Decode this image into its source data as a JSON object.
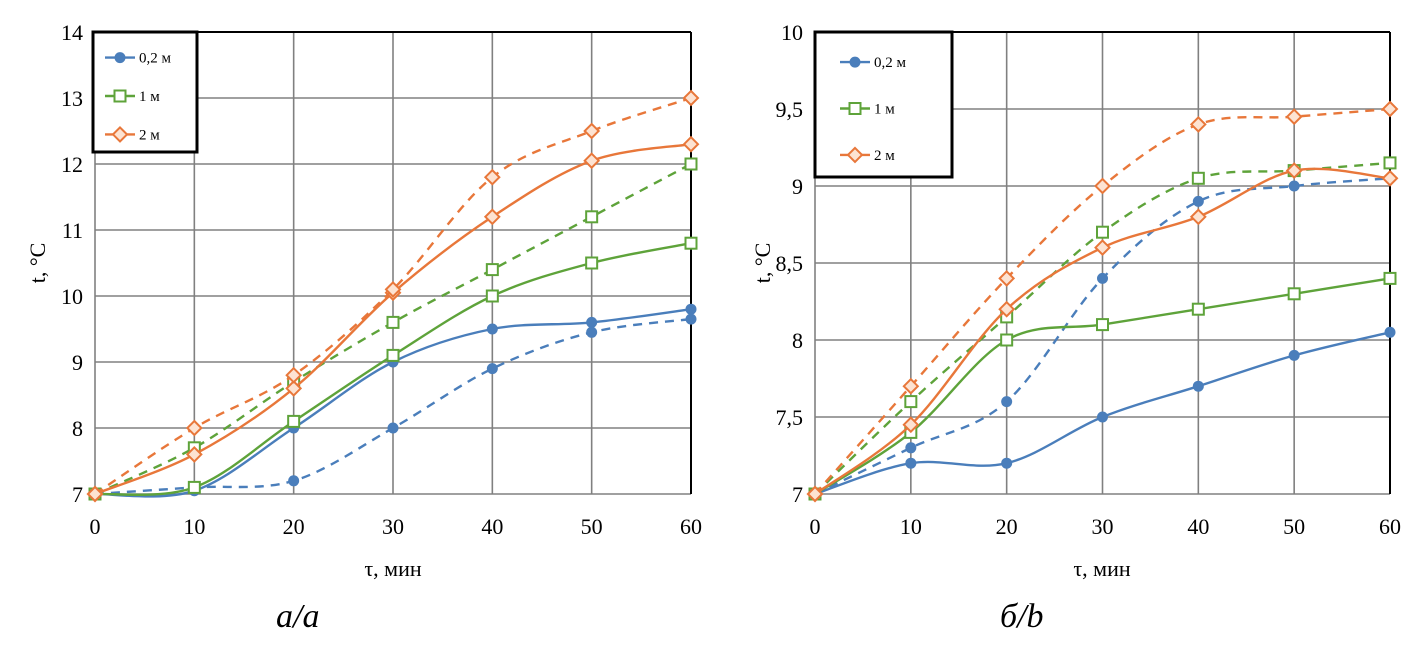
{
  "chart_data": [
    {
      "type": "line",
      "caption": "а/а",
      "xlabel": "τ, мин",
      "ylabel": "t, °C",
      "x": [
        0,
        10,
        20,
        30,
        40,
        50,
        60
      ],
      "xlim": [
        0,
        60
      ],
      "ylim": [
        7,
        14
      ],
      "xticks": [
        "0",
        "10",
        "20",
        "30",
        "40",
        "50",
        "60"
      ],
      "yticks": [
        "7",
        "8",
        "9",
        "10",
        "11",
        "12",
        "13",
        "14"
      ],
      "ytick_values": [
        7,
        8,
        9,
        10,
        11,
        12,
        13,
        14
      ],
      "grid": true,
      "legend_position": "top-left",
      "legend": [
        "0,2 м",
        "1 м",
        "2 м"
      ],
      "series": [
        {
          "name": "0,2 м",
          "style": "solid",
          "marker": "circle",
          "color": "#4a7ebb",
          "values": [
            7,
            7.05,
            8,
            9,
            9.5,
            9.6,
            9.8
          ]
        },
        {
          "name": "0,2 м",
          "style": "dashed",
          "marker": "circle",
          "color": "#4a7ebb",
          "values": [
            7,
            7.1,
            7.2,
            8,
            8.9,
            9.45,
            9.65
          ]
        },
        {
          "name": "1 м",
          "style": "solid",
          "marker": "square",
          "color": "#5ea33a",
          "values": [
            7,
            7.1,
            8.1,
            9.1,
            10,
            10.5,
            10.8
          ]
        },
        {
          "name": "1 м",
          "style": "dashed",
          "marker": "square",
          "color": "#5ea33a",
          "values": [
            7,
            7.7,
            8.7,
            9.6,
            10.4,
            11.2,
            12
          ]
        },
        {
          "name": "2 м",
          "style": "solid",
          "marker": "diamond",
          "color": "#e8773a",
          "values": [
            7,
            7.6,
            8.6,
            10.05,
            11.2,
            12.05,
            12.3
          ]
        },
        {
          "name": "2 м",
          "style": "dashed",
          "marker": "diamond",
          "color": "#e8773a",
          "values": [
            7,
            8,
            8.8,
            10.1,
            11.8,
            12.5,
            13
          ]
        }
      ]
    },
    {
      "type": "line",
      "caption": "б/b",
      "xlabel": "τ, мин",
      "ylabel": "t, °C",
      "x": [
        0,
        10,
        20,
        30,
        40,
        50,
        60
      ],
      "xlim": [
        0,
        60
      ],
      "ylim": [
        7,
        10
      ],
      "xticks": [
        "0",
        "10",
        "20",
        "30",
        "40",
        "50",
        "60"
      ],
      "yticks": [
        "7",
        "7,5",
        "8",
        "8,5",
        "9",
        "9,5",
        "10"
      ],
      "ytick_values": [
        7,
        7.5,
        8,
        8.5,
        9,
        9.5,
        10
      ],
      "grid": true,
      "legend_position": "top-left",
      "legend": [
        "0,2 м",
        "1 м",
        "2 м"
      ],
      "series": [
        {
          "name": "0,2 м",
          "style": "solid",
          "marker": "circle",
          "color": "#4a7ebb",
          "values": [
            7,
            7.2,
            7.2,
            7.5,
            7.7,
            7.9,
            8.05
          ]
        },
        {
          "name": "0,2 м",
          "style": "dashed",
          "marker": "circle",
          "color": "#4a7ebb",
          "values": [
            7,
            7.3,
            7.6,
            8.4,
            8.9,
            9,
            9.05
          ]
        },
        {
          "name": "1 м",
          "style": "solid",
          "marker": "square",
          "color": "#5ea33a",
          "values": [
            7,
            7.4,
            8,
            8.1,
            8.2,
            8.3,
            8.4
          ]
        },
        {
          "name": "1 м",
          "style": "dashed",
          "marker": "square",
          "color": "#5ea33a",
          "values": [
            7,
            7.6,
            8.15,
            8.7,
            9.05,
            9.1,
            9.15
          ]
        },
        {
          "name": "2 м",
          "style": "solid",
          "marker": "diamond",
          "color": "#e8773a",
          "values": [
            7,
            7.45,
            8.2,
            8.6,
            8.8,
            9.1,
            9.05
          ]
        },
        {
          "name": "2 м",
          "style": "dashed",
          "marker": "diamond",
          "color": "#e8773a",
          "values": [
            7,
            7.7,
            8.4,
            9,
            9.4,
            9.45,
            9.5
          ]
        }
      ]
    }
  ]
}
